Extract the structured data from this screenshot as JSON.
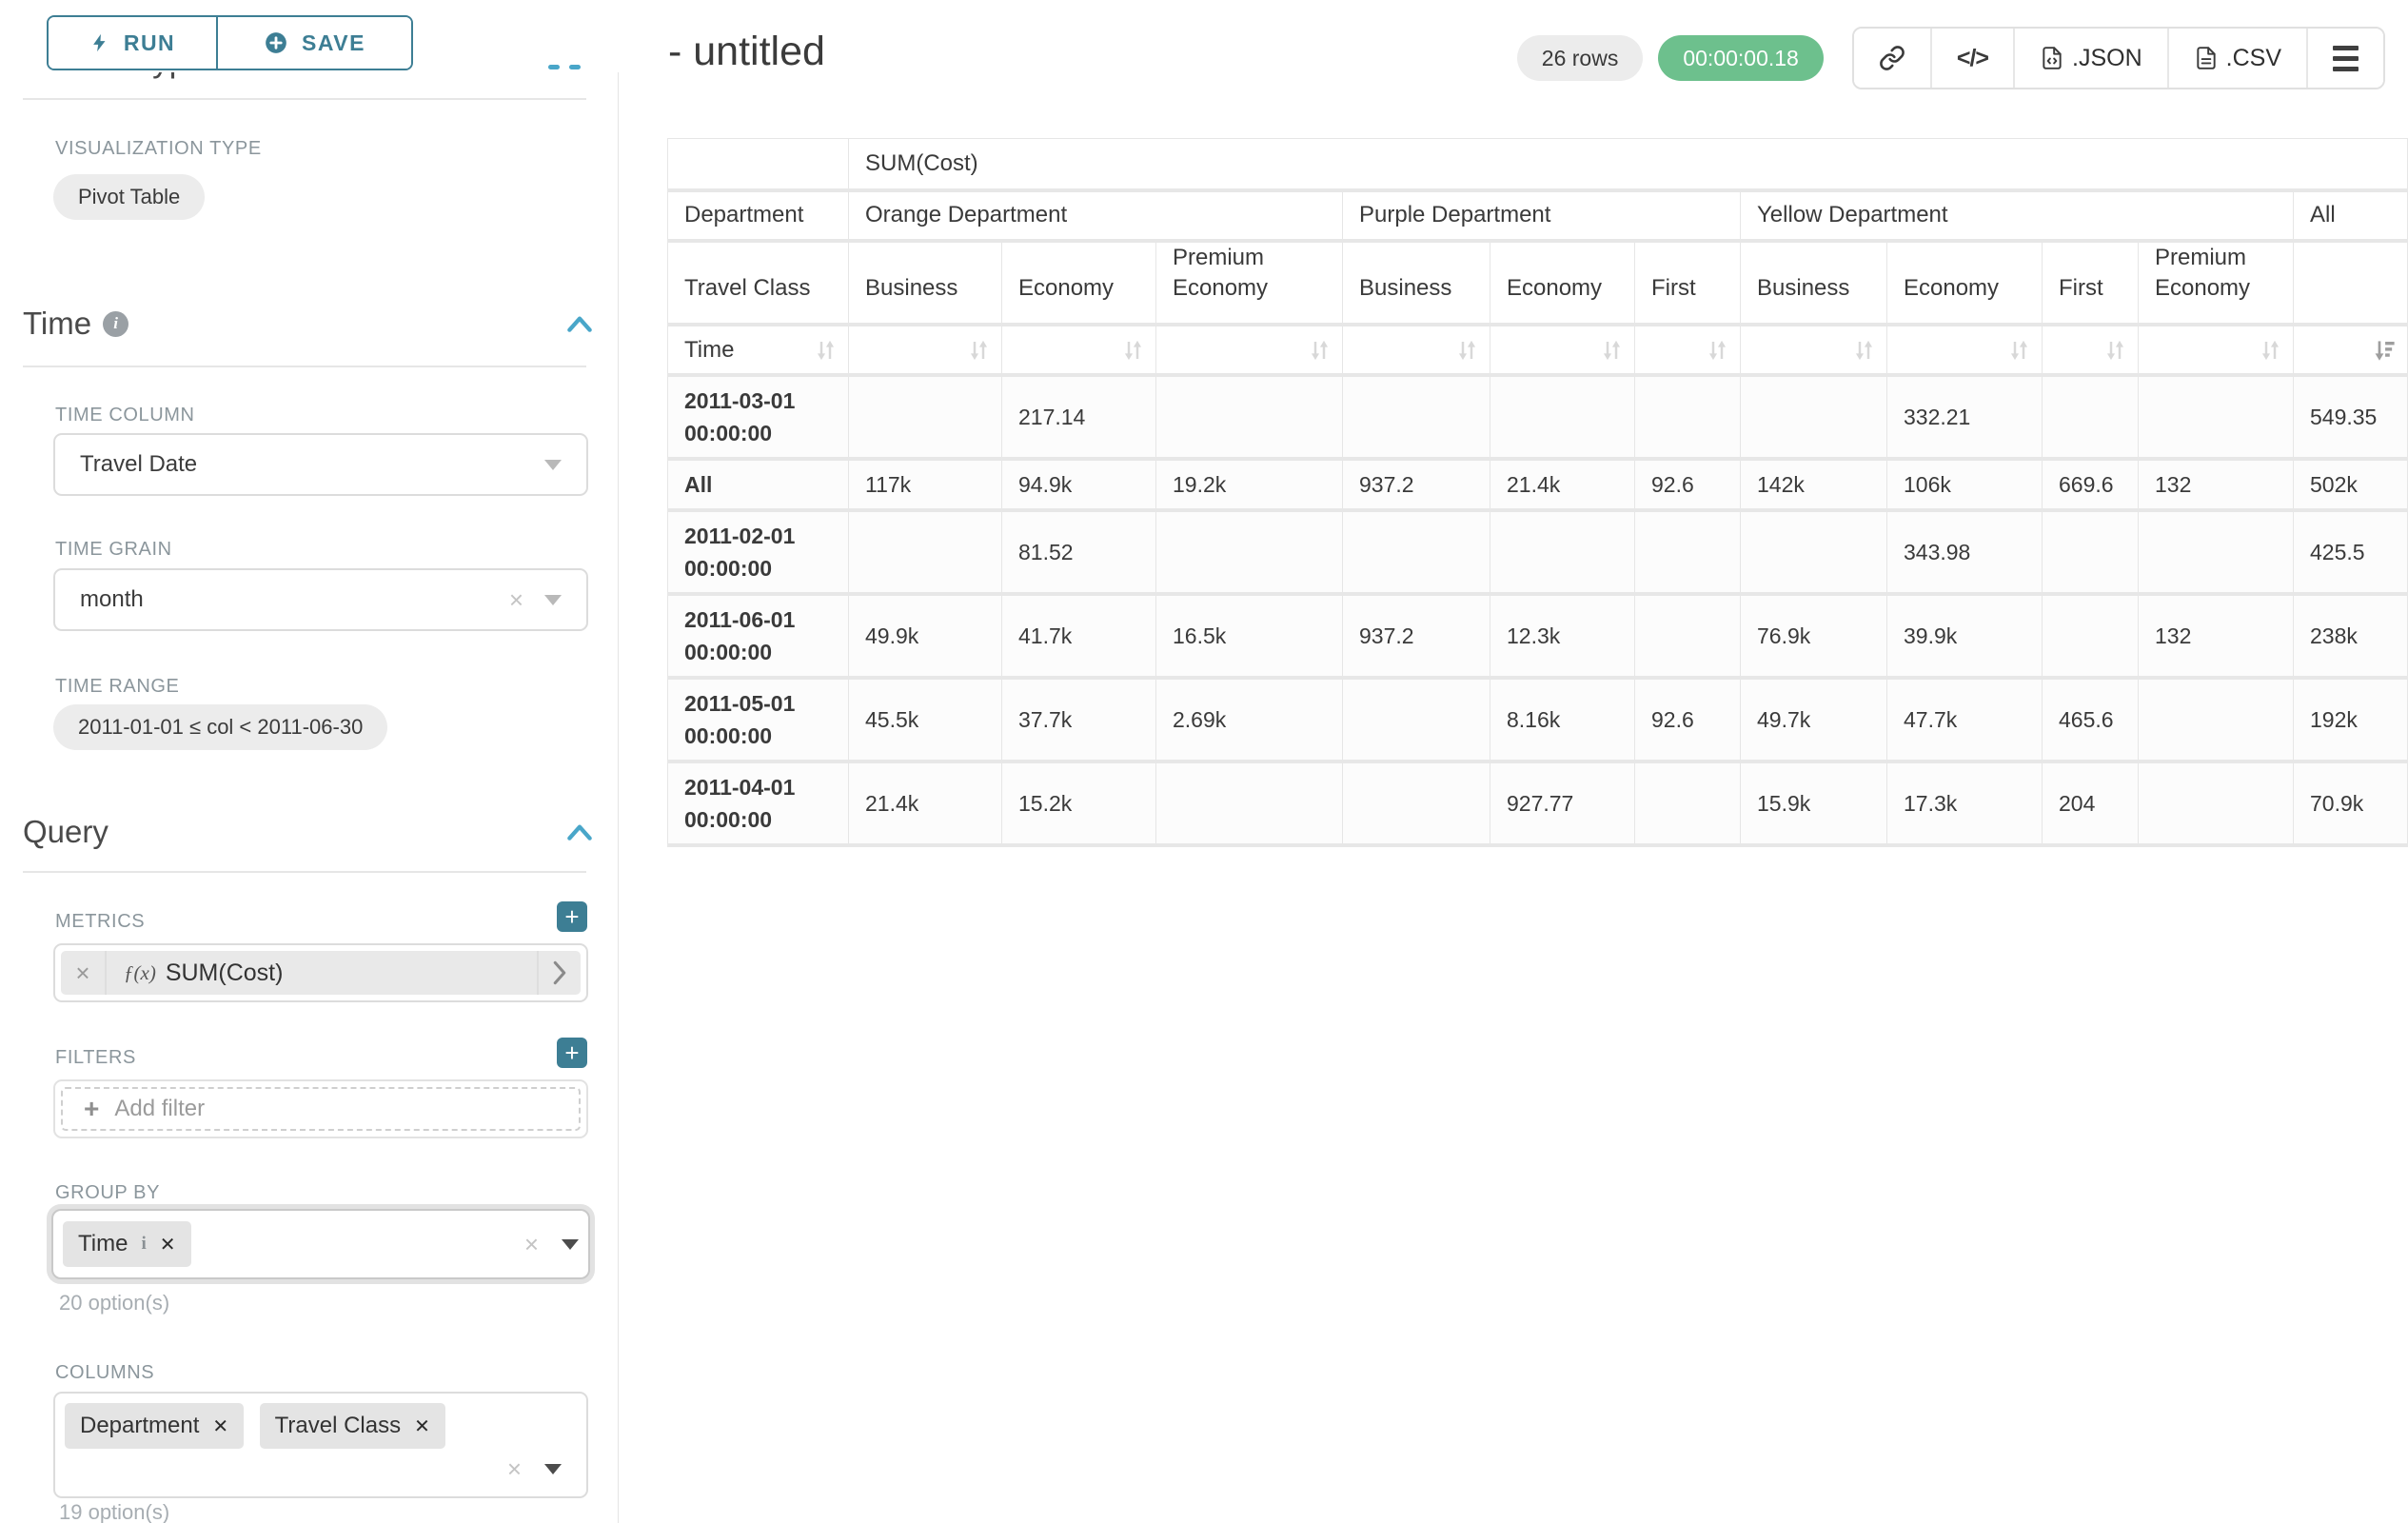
{
  "colors": {
    "primary_teal": "#3d7e94",
    "accent_blue": "#49a6c9",
    "success_green": "#6dc08d",
    "tag_gray": "#e4e4e4"
  },
  "sidebar": {
    "run_label": "RUN",
    "save_label": "SAVE",
    "clipped_heading": "Chart Type",
    "viz": {
      "label": "VISUALIZATION TYPE",
      "value": "Pivot Table"
    },
    "time": {
      "title": "Time",
      "time_column_label": "TIME COLUMN",
      "time_column_value": "Travel Date",
      "time_grain_label": "TIME GRAIN",
      "time_grain_value": "month",
      "time_range_label": "TIME RANGE",
      "time_range_value": "2011-01-01 ≤ col < 2011-06-30"
    },
    "query": {
      "title": "Query",
      "metrics_label": "METRICS",
      "metric_fx": "ƒ(x)",
      "metric_value": "SUM(Cost)",
      "filters_label": "FILTERS",
      "add_filter_label": "Add filter",
      "group_by_label": "GROUP BY",
      "group_by_tags": [
        "Time"
      ],
      "group_by_hint": "20 option(s)",
      "columns_label": "COLUMNS",
      "columns_tags": [
        "Department",
        "Travel Class"
      ],
      "columns_hint": "19 option(s)"
    }
  },
  "header": {
    "title": "- untitled",
    "rows_badge": "26 rows",
    "timer_badge": "00:00:00.18",
    "json_label": ".JSON",
    "csv_label": ".CSV"
  },
  "pivot": {
    "metric_header": "SUM(Cost)",
    "row2_label": "Department",
    "row3_label": "Travel Class",
    "sort_row_label": "Time",
    "col_groups": [
      {
        "label": "Orange Department",
        "span": 3
      },
      {
        "label": "Purple Department",
        "span": 3
      },
      {
        "label": "Yellow Department",
        "span": 4
      },
      {
        "label": "All",
        "span": 1
      }
    ],
    "leaf_cols": [
      "Business",
      "Economy",
      "Premium Economy",
      "Business",
      "Economy",
      "First",
      "Business",
      "Economy",
      "First",
      "Premium Economy",
      ""
    ],
    "rows": [
      {
        "label": "2011-03-01 00:00:00",
        "values": [
          "",
          "217.14",
          "",
          "",
          "",
          "",
          "",
          "332.21",
          "",
          "",
          "549.35"
        ]
      },
      {
        "label": "All",
        "values": [
          "117k",
          "94.9k",
          "19.2k",
          "937.2",
          "21.4k",
          "92.6",
          "142k",
          "106k",
          "669.6",
          "132",
          "502k"
        ]
      },
      {
        "label": "2011-02-01 00:00:00",
        "values": [
          "",
          "81.52",
          "",
          "",
          "",
          "",
          "",
          "343.98",
          "",
          "",
          "425.5"
        ]
      },
      {
        "label": "2011-06-01 00:00:00",
        "values": [
          "49.9k",
          "41.7k",
          "16.5k",
          "937.2",
          "12.3k",
          "",
          "76.9k",
          "39.9k",
          "",
          "132",
          "238k"
        ]
      },
      {
        "label": "2011-05-01 00:00:00",
        "values": [
          "45.5k",
          "37.7k",
          "2.69k",
          "",
          "8.16k",
          "92.6",
          "49.7k",
          "47.7k",
          "465.6",
          "",
          "192k"
        ]
      },
      {
        "label": "2011-04-01 00:00:00",
        "values": [
          "21.4k",
          "15.2k",
          "",
          "",
          "927.77",
          "",
          "15.9k",
          "17.3k",
          "204",
          "",
          "70.9k"
        ]
      }
    ]
  }
}
